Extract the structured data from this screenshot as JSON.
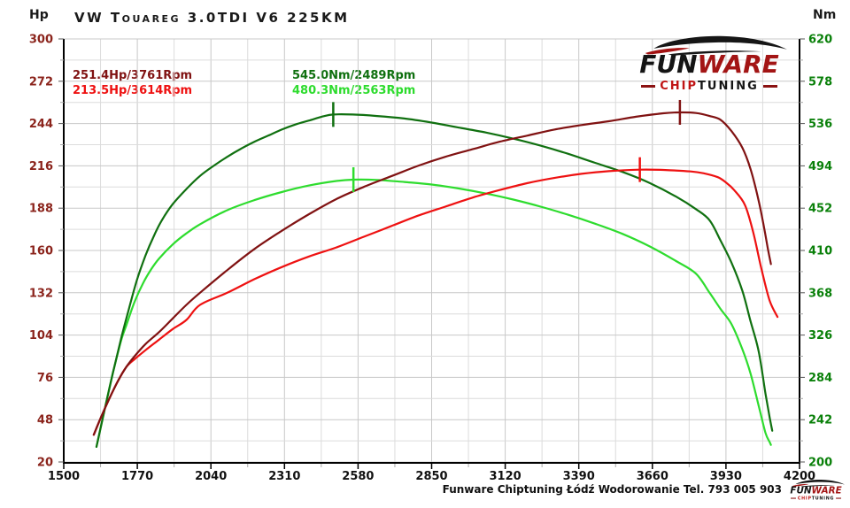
{
  "header": {
    "title": "VW Touareg 3.0TDI V6 225KM",
    "left_unit": "Hp",
    "right_unit": "Nm"
  },
  "legend": {
    "items": [
      {
        "label": "251.4Hp/3761Rpm",
        "color": "#801212",
        "col": 0,
        "row": 0
      },
      {
        "label": "213.5Hp/3614Rpm",
        "color": "#EE1111",
        "col": 0,
        "row": 1
      },
      {
        "label": "545.0Nm/2489Rpm",
        "color": "#107010",
        "col": 1,
        "row": 0
      },
      {
        "label": "480.3Nm/2563Rpm",
        "color": "#2EDC2E",
        "col": 1,
        "row": 1
      }
    ]
  },
  "caption": "Funware Chiptuning Łódź Wodorowanie Tel. 793 005 903",
  "brand": {
    "fun": "FUN",
    "ware": "WARE",
    "chip": "CHIP",
    "tuning": "TUNING"
  },
  "colors": {
    "left_axis_text": "#8B241C",
    "right_axis_text": "#0A800A",
    "bottom_axis_text": "#111111",
    "grid_minor": "#DCDCDC",
    "grid_major": "#C8C8C8",
    "axis_line": "#000000",
    "tick_major": "#555555",
    "tick_minor": "#AAAAAA"
  },
  "chart_data": {
    "type": "line",
    "title": "VW Touareg 3.0TDI V6 225KM",
    "x_axis": {
      "ticks": [
        1500,
        1770,
        2040,
        2310,
        2580,
        2850,
        3120,
        3390,
        3660,
        3930,
        4200
      ],
      "range": [
        1500,
        4200
      ],
      "minor_step": 135,
      "grid": true
    },
    "y_left": {
      "unit": "Hp",
      "ticks": [
        300,
        272,
        244,
        216,
        188,
        160,
        132,
        104,
        76,
        48,
        20
      ],
      "range": [
        20,
        300
      ],
      "minor_step": 14
    },
    "y_right": {
      "unit": "Nm",
      "ticks": [
        620,
        578,
        536,
        494,
        452,
        410,
        368,
        326,
        284,
        242,
        200
      ],
      "range": [
        200,
        620
      ],
      "minor_step": 21
    },
    "series": [
      {
        "name": "torque_stock",
        "legend": "480.3Nm/2563Rpm",
        "axis": "right",
        "color": "#2EDC2E",
        "peak": {
          "rpm": 2563,
          "value": 480.3
        },
        "points": [
          [
            1620,
            215
          ],
          [
            1650,
            252
          ],
          [
            1680,
            288
          ],
          [
            1710,
            320
          ],
          [
            1730,
            336
          ],
          [
            1760,
            359
          ],
          [
            1790,
            377
          ],
          [
            1820,
            391
          ],
          [
            1850,
            402
          ],
          [
            1900,
            416
          ],
          [
            1950,
            427
          ],
          [
            2000,
            436
          ],
          [
            2100,
            450
          ],
          [
            2200,
            460
          ],
          [
            2300,
            468
          ],
          [
            2400,
            474.5
          ],
          [
            2500,
            479
          ],
          [
            2563,
            480.3
          ],
          [
            2650,
            480
          ],
          [
            2750,
            478
          ],
          [
            2850,
            475.5
          ],
          [
            2950,
            471.5
          ],
          [
            3050,
            466.5
          ],
          [
            3150,
            460.5
          ],
          [
            3250,
            453.5
          ],
          [
            3350,
            445.5
          ],
          [
            3450,
            436.5
          ],
          [
            3550,
            426.5
          ],
          [
            3650,
            414
          ],
          [
            3750,
            399
          ],
          [
            3820,
            387
          ],
          [
            3870,
            368
          ],
          [
            3910,
            352
          ],
          [
            3950,
            337
          ],
          [
            3990,
            312
          ],
          [
            4020,
            288
          ],
          [
            4050,
            256
          ],
          [
            4075,
            229
          ],
          [
            4090,
            220
          ],
          [
            4095,
            217
          ]
        ]
      },
      {
        "name": "torque_tuned",
        "legend": "545.0Nm/2489Rpm",
        "axis": "right",
        "color": "#107010",
        "peak": {
          "rpm": 2489,
          "value": 545.0
        },
        "points": [
          [
            1620,
            215
          ],
          [
            1650,
            252
          ],
          [
            1680,
            288
          ],
          [
            1710,
            322
          ],
          [
            1740,
            353
          ],
          [
            1770,
            382
          ],
          [
            1800,
            405
          ],
          [
            1830,
            424
          ],
          [
            1860,
            440
          ],
          [
            1900,
            456
          ],
          [
            1950,
            471
          ],
          [
            2000,
            484
          ],
          [
            2050,
            494
          ],
          [
            2100,
            503
          ],
          [
            2150,
            511
          ],
          [
            2200,
            518
          ],
          [
            2250,
            524
          ],
          [
            2300,
            530
          ],
          [
            2350,
            535
          ],
          [
            2400,
            539
          ],
          [
            2450,
            543
          ],
          [
            2489,
            545
          ],
          [
            2560,
            545
          ],
          [
            2650,
            543.5
          ],
          [
            2750,
            541
          ],
          [
            2850,
            537
          ],
          [
            2950,
            532
          ],
          [
            3050,
            527
          ],
          [
            3150,
            521
          ],
          [
            3250,
            514
          ],
          [
            3350,
            506
          ],
          [
            3450,
            497
          ],
          [
            3550,
            488
          ],
          [
            3650,
            477
          ],
          [
            3750,
            463
          ],
          [
            3820,
            451
          ],
          [
            3870,
            440
          ],
          [
            3910,
            420
          ],
          [
            3950,
            398
          ],
          [
            3990,
            370
          ],
          [
            4020,
            340
          ],
          [
            4050,
            310
          ],
          [
            4075,
            268
          ],
          [
            4090,
            245
          ],
          [
            4100,
            231
          ]
        ]
      },
      {
        "name": "power_stock",
        "legend": "213.5Hp/3614Rpm",
        "axis": "left",
        "color": "#EE1111",
        "peak": {
          "rpm": 3614,
          "value": 213.5
        },
        "points": [
          [
            1610,
            38
          ],
          [
            1640,
            51
          ],
          [
            1670,
            63
          ],
          [
            1700,
            74
          ],
          [
            1730,
            83
          ],
          [
            1760,
            88
          ],
          [
            1800,
            94
          ],
          [
            1850,
            101
          ],
          [
            1900,
            108
          ],
          [
            1950,
            114
          ],
          [
            2000,
            124
          ],
          [
            2100,
            132
          ],
          [
            2200,
            141
          ],
          [
            2300,
            149
          ],
          [
            2400,
            156
          ],
          [
            2500,
            162
          ],
          [
            2600,
            169
          ],
          [
            2700,
            176
          ],
          [
            2800,
            183
          ],
          [
            2900,
            189
          ],
          [
            3000,
            195
          ],
          [
            3100,
            200
          ],
          [
            3200,
            204.5
          ],
          [
            3300,
            208
          ],
          [
            3400,
            210.7
          ],
          [
            3500,
            212.5
          ],
          [
            3614,
            213.5
          ],
          [
            3700,
            213.3
          ],
          [
            3800,
            212.3
          ],
          [
            3850,
            211
          ],
          [
            3900,
            208.5
          ],
          [
            3930,
            205
          ],
          [
            3960,
            200
          ],
          [
            4000,
            190
          ],
          [
            4030,
            172
          ],
          [
            4060,
            148
          ],
          [
            4090,
            127
          ],
          [
            4119,
            116
          ]
        ]
      },
      {
        "name": "power_tuned",
        "legend": "251.4Hp/3761Rpm",
        "axis": "left",
        "color": "#801212",
        "peak": {
          "rpm": 3761,
          "value": 251.4
        },
        "points": [
          [
            1610,
            38
          ],
          [
            1640,
            51
          ],
          [
            1670,
            63
          ],
          [
            1700,
            74
          ],
          [
            1730,
            83
          ],
          [
            1760,
            90
          ],
          [
            1800,
            98
          ],
          [
            1850,
            106
          ],
          [
            1900,
            115
          ],
          [
            1950,
            124
          ],
          [
            2000,
            132
          ],
          [
            2100,
            147
          ],
          [
            2200,
            161
          ],
          [
            2300,
            173
          ],
          [
            2400,
            184
          ],
          [
            2500,
            194
          ],
          [
            2600,
            202
          ],
          [
            2700,
            209
          ],
          [
            2800,
            216
          ],
          [
            2900,
            222
          ],
          [
            3000,
            227
          ],
          [
            3100,
            232
          ],
          [
            3200,
            236
          ],
          [
            3300,
            240
          ],
          [
            3400,
            243
          ],
          [
            3500,
            245.5
          ],
          [
            3600,
            248.5
          ],
          [
            3700,
            250.8
          ],
          [
            3761,
            251.4
          ],
          [
            3820,
            251
          ],
          [
            3870,
            249
          ],
          [
            3910,
            246.5
          ],
          [
            3950,
            239
          ],
          [
            3990,
            228
          ],
          [
            4020,
            214
          ],
          [
            4050,
            193
          ],
          [
            4070,
            175
          ],
          [
            4085,
            160
          ],
          [
            4095,
            151
          ]
        ]
      }
    ],
    "legend_position": "top-inside",
    "grid": true
  }
}
